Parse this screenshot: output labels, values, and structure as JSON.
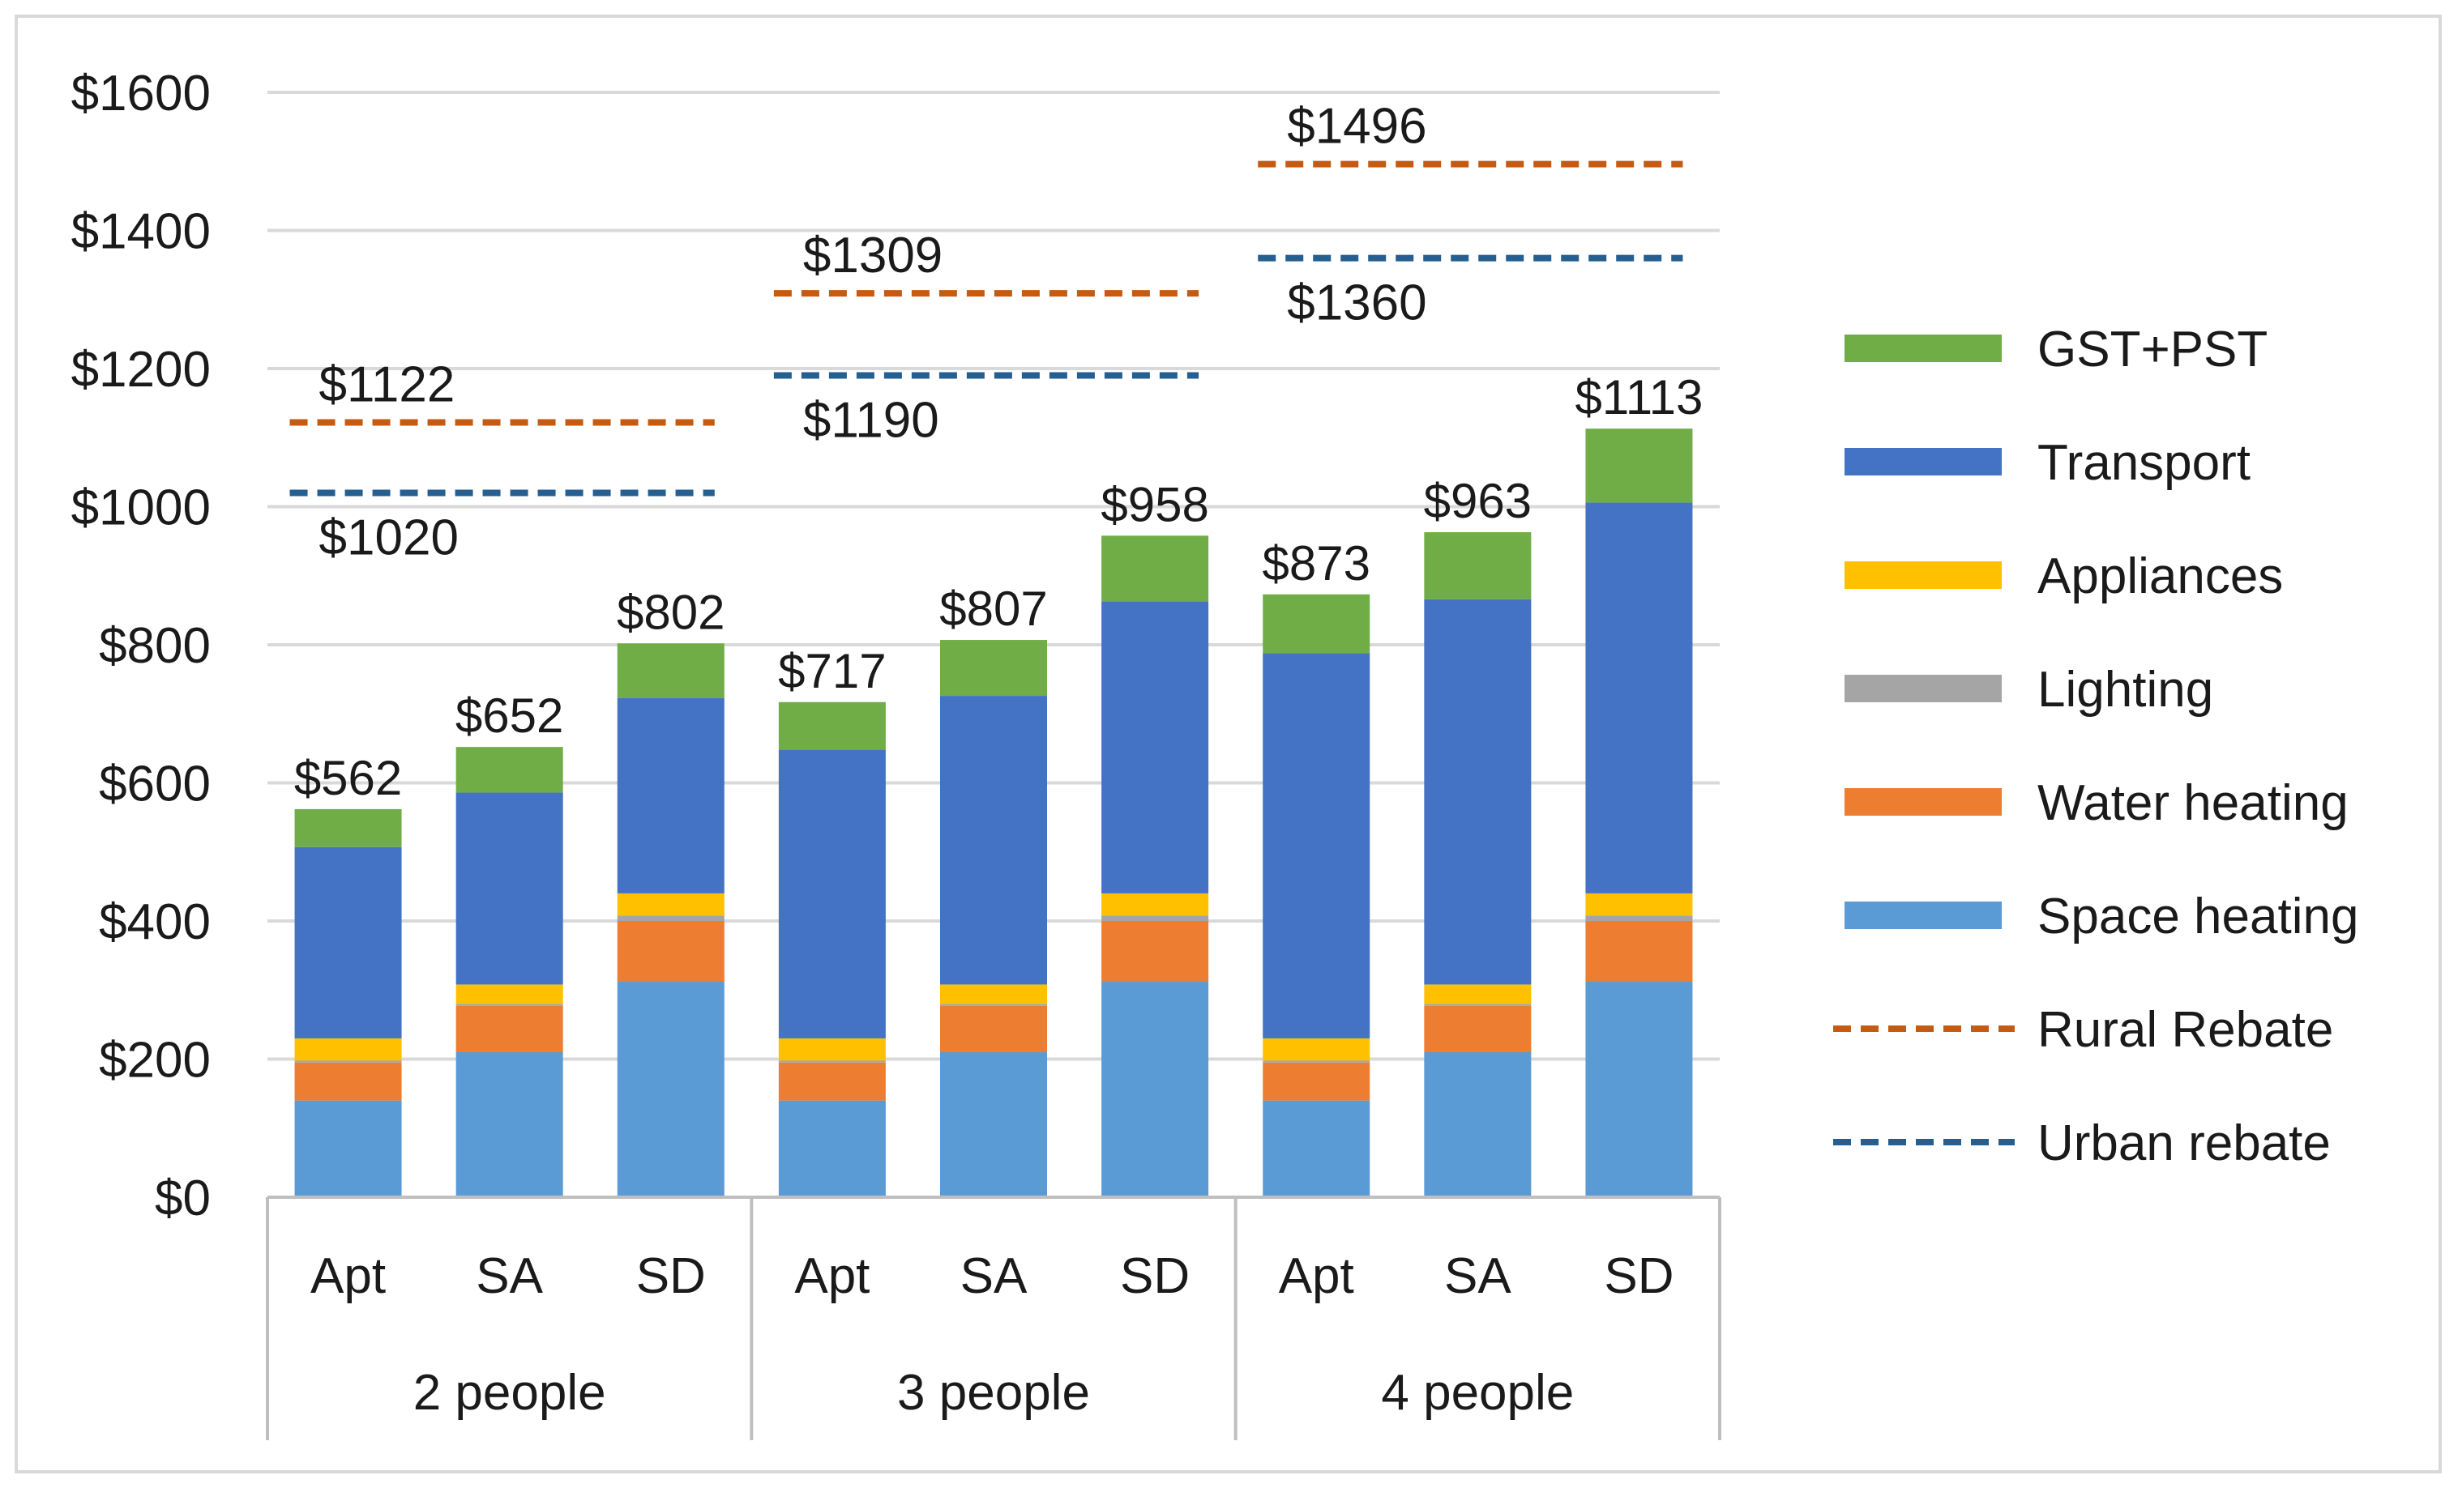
{
  "chart_data": {
    "type": "bar",
    "stacked": true,
    "title": "",
    "xlabel": "",
    "ylabel": "",
    "ylim": [
      0,
      1600
    ],
    "yticks": [
      0,
      200,
      400,
      600,
      800,
      1000,
      1200,
      1400,
      1600
    ],
    "ytick_labels": [
      "$0",
      "$200",
      "$400",
      "$600",
      "$800",
      "$1000",
      "$1200",
      "$1400",
      "$1600"
    ],
    "grid": true,
    "legend_position": "right",
    "categories": [
      "Apt",
      "SA",
      "SD",
      "Apt",
      "SA",
      "SD",
      "Apt",
      "SA",
      "SD"
    ],
    "groups": [
      {
        "label": "2 people",
        "start": 0,
        "end": 2
      },
      {
        "label": "3 people",
        "start": 3,
        "end": 5
      },
      {
        "label": "4 people",
        "start": 6,
        "end": 8
      }
    ],
    "series": [
      {
        "name": "Space heating",
        "color": "#5b9bd5",
        "values": [
          140,
          210,
          312,
          140,
          210,
          312,
          140,
          210,
          312
        ]
      },
      {
        "name": "Water heating",
        "color": "#ed7d31",
        "values": [
          55,
          67,
          88,
          55,
          67,
          88,
          55,
          67,
          88
        ]
      },
      {
        "name": "Lighting",
        "color": "#a5a5a5",
        "values": [
          3,
          3,
          8,
          3,
          3,
          8,
          3,
          3,
          8
        ]
      },
      {
        "name": "Appliances",
        "color": "#ffc000",
        "values": [
          32,
          28,
          32,
          32,
          28,
          32,
          32,
          28,
          32
        ]
      },
      {
        "name": "Transport",
        "color": "#4472c4",
        "values": [
          277,
          278,
          283,
          418,
          418,
          423,
          558,
          558,
          566
        ]
      },
      {
        "name": "GST+PST",
        "color": "#70ad47",
        "values": [
          55,
          66,
          79,
          69,
          81,
          95,
          85,
          97,
          107
        ]
      }
    ],
    "totals": [
      562,
      652,
      802,
      717,
      807,
      958,
      873,
      963,
      1113
    ],
    "total_labels": [
      "$562",
      "$652",
      "$802",
      "$717",
      "$807",
      "$958",
      "$873",
      "$963",
      "$1113"
    ],
    "rebates": [
      {
        "name": "Rural Rebate",
        "color": "#c55a11",
        "values": [
          1122,
          1309,
          1496
        ],
        "labels": [
          "$1122",
          "$1309",
          "$1496"
        ]
      },
      {
        "name": "Urban rebate",
        "color": "#255e91",
        "values": [
          1020,
          1190,
          1360
        ],
        "labels": [
          "$1020",
          "$1190",
          "$1360"
        ]
      }
    ],
    "legend": [
      {
        "name": "GST+PST",
        "kind": "box",
        "color": "#70ad47"
      },
      {
        "name": "Transport",
        "kind": "box",
        "color": "#4472c4"
      },
      {
        "name": "Appliances",
        "kind": "box",
        "color": "#ffc000"
      },
      {
        "name": "Lighting",
        "kind": "box",
        "color": "#a5a5a5"
      },
      {
        "name": "Water heating",
        "kind": "box",
        "color": "#ed7d31"
      },
      {
        "name": "Space heating",
        "kind": "box",
        "color": "#5b9bd5"
      },
      {
        "name": "Rural Rebate",
        "kind": "dash",
        "color": "#c55a11"
      },
      {
        "name": "Urban rebate",
        "kind": "dash",
        "color": "#255e91"
      }
    ]
  }
}
